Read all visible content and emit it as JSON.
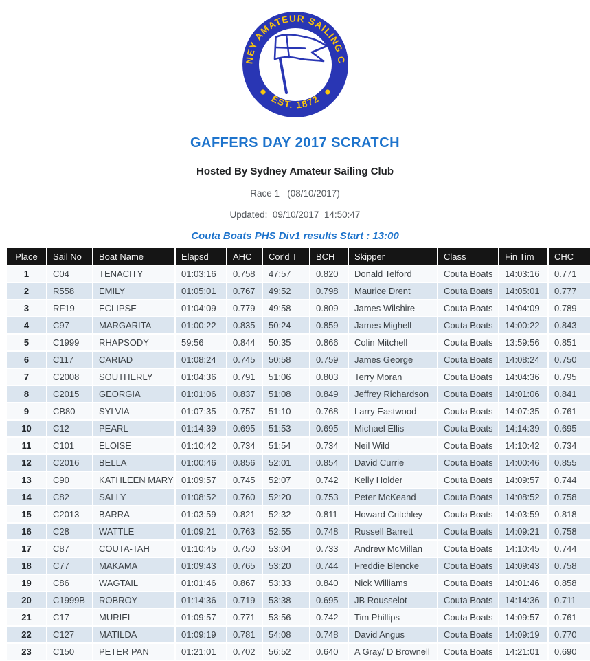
{
  "logo": {
    "ring_text_top": "SYDNEY AMATEUR SAILING CLUB",
    "ring_text_bottom": "EST. 1872",
    "colors": {
      "ring_blue": "#2936b4",
      "gold": "#fcc60a",
      "flag_blue": "#2936b4"
    }
  },
  "header": {
    "title": "GAFFERS DAY 2017 SCRATCH",
    "subtitle": "Hosted By Sydney Amateur Sailing Club",
    "race_line": "Race 1   (08/10/2017)",
    "updated_line": "Updated:  09/10/2017  14:50:47",
    "division_line": "Couta Boats PHS Div1 results Start : 13:00"
  },
  "colors": {
    "title_blue": "#1d73cc",
    "table_header_bg": "#151515",
    "row_odd": "#f7f9fb",
    "row_even": "#dbe5ef"
  },
  "results": {
    "columns": [
      "Place",
      "Sail No",
      "Boat Name",
      "Elapsd",
      "AHC",
      "Cor'd T",
      "BCH",
      "Skipper",
      "Class",
      "Fin Tim",
      "CHC"
    ],
    "keys": [
      "place",
      "sail_no",
      "boat_name",
      "elapsd",
      "ahc",
      "cord_t",
      "bch",
      "skipper",
      "class",
      "fin_tim",
      "chc"
    ],
    "rows": [
      [
        "1",
        "C04",
        "TENACITY",
        "01:03:16",
        "0.758",
        "47:57",
        "0.820",
        "Donald Telford",
        "Couta Boats",
        "14:03:16",
        "0.771"
      ],
      [
        "2",
        "R558",
        "EMILY",
        "01:05:01",
        "0.767",
        "49:52",
        "0.798",
        "Maurice Drent",
        "Couta Boats",
        "14:05:01",
        "0.777"
      ],
      [
        "3",
        "RF19",
        "ECLIPSE",
        "01:04:09",
        "0.779",
        "49:58",
        "0.809",
        "James Wilshire",
        "Couta Boats",
        "14:04:09",
        "0.789"
      ],
      [
        "4",
        "C97",
        "MARGARITA",
        "01:00:22",
        "0.835",
        "50:24",
        "0.859",
        "James Mighell",
        "Couta Boats",
        "14:00:22",
        "0.843"
      ],
      [
        "5",
        "C1999",
        "RHAPSODY",
        "59:56",
        "0.844",
        "50:35",
        "0.866",
        "Colin Mitchell",
        "Couta Boats",
        "13:59:56",
        "0.851"
      ],
      [
        "6",
        "C117",
        "CARIAD",
        "01:08:24",
        "0.745",
        "50:58",
        "0.759",
        "James George",
        "Couta Boats",
        "14:08:24",
        "0.750"
      ],
      [
        "7",
        "C2008",
        "SOUTHERLY",
        "01:04:36",
        "0.791",
        "51:06",
        "0.803",
        "Terry Moran",
        "Couta Boats",
        "14:04:36",
        "0.795"
      ],
      [
        "8",
        "C2015",
        "GEORGIA",
        "01:01:06",
        "0.837",
        "51:08",
        "0.849",
        "Jeffrey Richardson",
        "Couta Boats",
        "14:01:06",
        "0.841"
      ],
      [
        "9",
        "CB80",
        "SYLVIA",
        "01:07:35",
        "0.757",
        "51:10",
        "0.768",
        "Larry Eastwood",
        "Couta Boats",
        "14:07:35",
        "0.761"
      ],
      [
        "10",
        "C12",
        "PEARL",
        "01:14:39",
        "0.695",
        "51:53",
        "0.695",
        "Michael Ellis",
        "Couta Boats",
        "14:14:39",
        "0.695"
      ],
      [
        "11",
        "C101",
        "ELOISE",
        "01:10:42",
        "0.734",
        "51:54",
        "0.734",
        "Neil Wild",
        "Couta Boats",
        "14:10:42",
        "0.734"
      ],
      [
        "12",
        "C2016",
        "BELLA",
        "01:00:46",
        "0.856",
        "52:01",
        "0.854",
        "David Currie",
        "Couta Boats",
        "14:00:46",
        "0.855"
      ],
      [
        "13",
        "C90",
        "KATHLEEN MARY",
        "01:09:57",
        "0.745",
        "52:07",
        "0.742",
        "Kelly Holder",
        "Couta Boats",
        "14:09:57",
        "0.744"
      ],
      [
        "14",
        "C82",
        "SALLY",
        "01:08:52",
        "0.760",
        "52:20",
        "0.753",
        "Peter McKeand",
        "Couta Boats",
        "14:08:52",
        "0.758"
      ],
      [
        "15",
        "C2013",
        "BARRA",
        "01:03:59",
        "0.821",
        "52:32",
        "0.811",
        "Howard Critchley",
        "Couta Boats",
        "14:03:59",
        "0.818"
      ],
      [
        "16",
        "C28",
        "WATTLE",
        "01:09:21",
        "0.763",
        "52:55",
        "0.748",
        "Russell Barrett",
        "Couta Boats",
        "14:09:21",
        "0.758"
      ],
      [
        "17",
        "C87",
        "COUTA-TAH",
        "01:10:45",
        "0.750",
        "53:04",
        "0.733",
        "Andrew McMillan",
        "Couta Boats",
        "14:10:45",
        "0.744"
      ],
      [
        "18",
        "C77",
        "MAKAMA",
        "01:09:43",
        "0.765",
        "53:20",
        "0.744",
        "Freddie Blencke",
        "Couta Boats",
        "14:09:43",
        "0.758"
      ],
      [
        "19",
        "C86",
        "WAGTAIL",
        "01:01:46",
        "0.867",
        "53:33",
        "0.840",
        "Nick Williams",
        "Couta Boats",
        "14:01:46",
        "0.858"
      ],
      [
        "20",
        "C1999B",
        "ROBROY",
        "01:14:36",
        "0.719",
        "53:38",
        "0.695",
        "JB Rousselot",
        "Couta Boats",
        "14:14:36",
        "0.711"
      ],
      [
        "21",
        "C17",
        "MURIEL",
        "01:09:57",
        "0.771",
        "53:56",
        "0.742",
        "Tim Phillips",
        "Couta Boats",
        "14:09:57",
        "0.761"
      ],
      [
        "22",
        "C127",
        "MATILDA",
        "01:09:19",
        "0.781",
        "54:08",
        "0.748",
        "David Angus",
        "Couta Boats",
        "14:09:19",
        "0.770"
      ],
      [
        "23",
        "C150",
        "PETER PAN",
        "01:21:01",
        "0.702",
        "56:52",
        "0.640",
        "A Gray/ D Brownell",
        "Couta Boats",
        "14:21:01",
        "0.690"
      ]
    ]
  }
}
